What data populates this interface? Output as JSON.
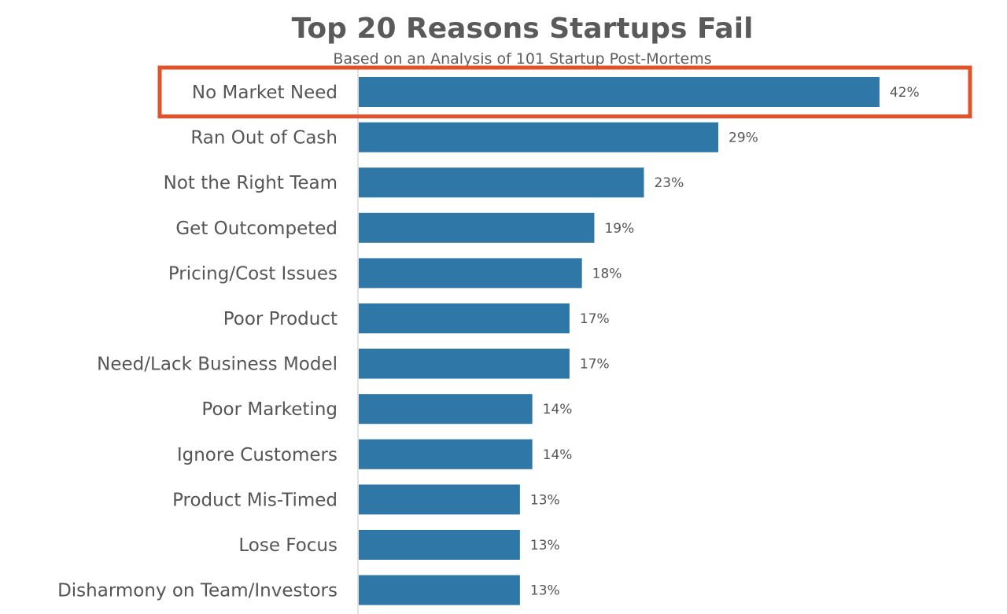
{
  "chart_data": {
    "type": "bar",
    "orientation": "horizontal",
    "title": "Top 20 Reasons Startups Fail",
    "subtitle": "Based on an Analysis of 101 Startup Post-Mortems",
    "categories": [
      "No Market Need",
      "Ran Out of Cash",
      "Not the Right Team",
      "Get Outcompeted",
      "Pricing/Cost Issues",
      "Poor Product",
      "Need/Lack Business Model",
      "Poor Marketing",
      "Ignore Customers",
      "Product Mis-Timed",
      "Lose Focus",
      "Disharmony on Team/Investors"
    ],
    "values": [
      42,
      29,
      23,
      19,
      18,
      17,
      17,
      14,
      14,
      13,
      13,
      13
    ],
    "value_labels": [
      "42%",
      "29%",
      "23%",
      "19%",
      "18%",
      "17%",
      "17%",
      "14%",
      "14%",
      "13%",
      "13%",
      "13%"
    ],
    "unit": "%",
    "xlabel": "",
    "ylabel": "",
    "highlighted_category": "No Market Need",
    "colors": {
      "bar": "#2f77a6",
      "highlight": "#e0522a"
    }
  }
}
